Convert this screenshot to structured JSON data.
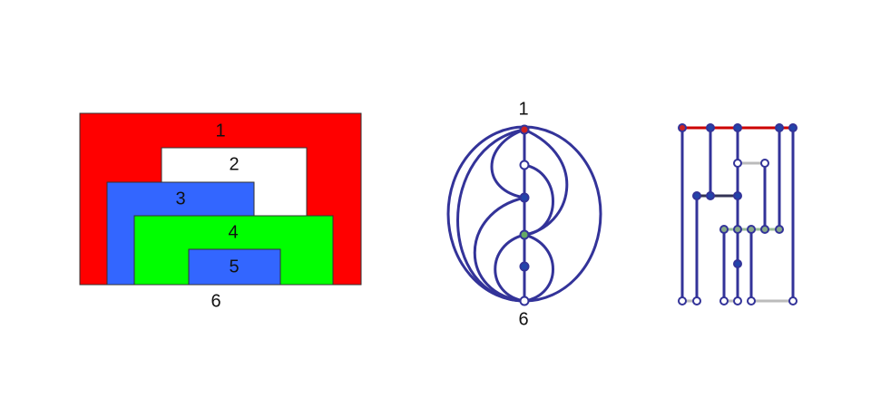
{
  "rectangles_panel": {
    "labels": {
      "r1": "1",
      "r2": "2",
      "r3": "3",
      "r4": "4",
      "r5": "5",
      "bottom": "6"
    },
    "colors": {
      "r1": "#ff0000",
      "r2": "#ffffff",
      "r3": "#3366ff",
      "r4": "#00ff00",
      "r5": "#3366ff"
    }
  },
  "graph_panel": {
    "top_label": "1",
    "bottom_label": "6",
    "edge_color": "#333399"
  },
  "segment_panel": {
    "edge_color": "#333399",
    "highlight_color": "#cc0000"
  }
}
